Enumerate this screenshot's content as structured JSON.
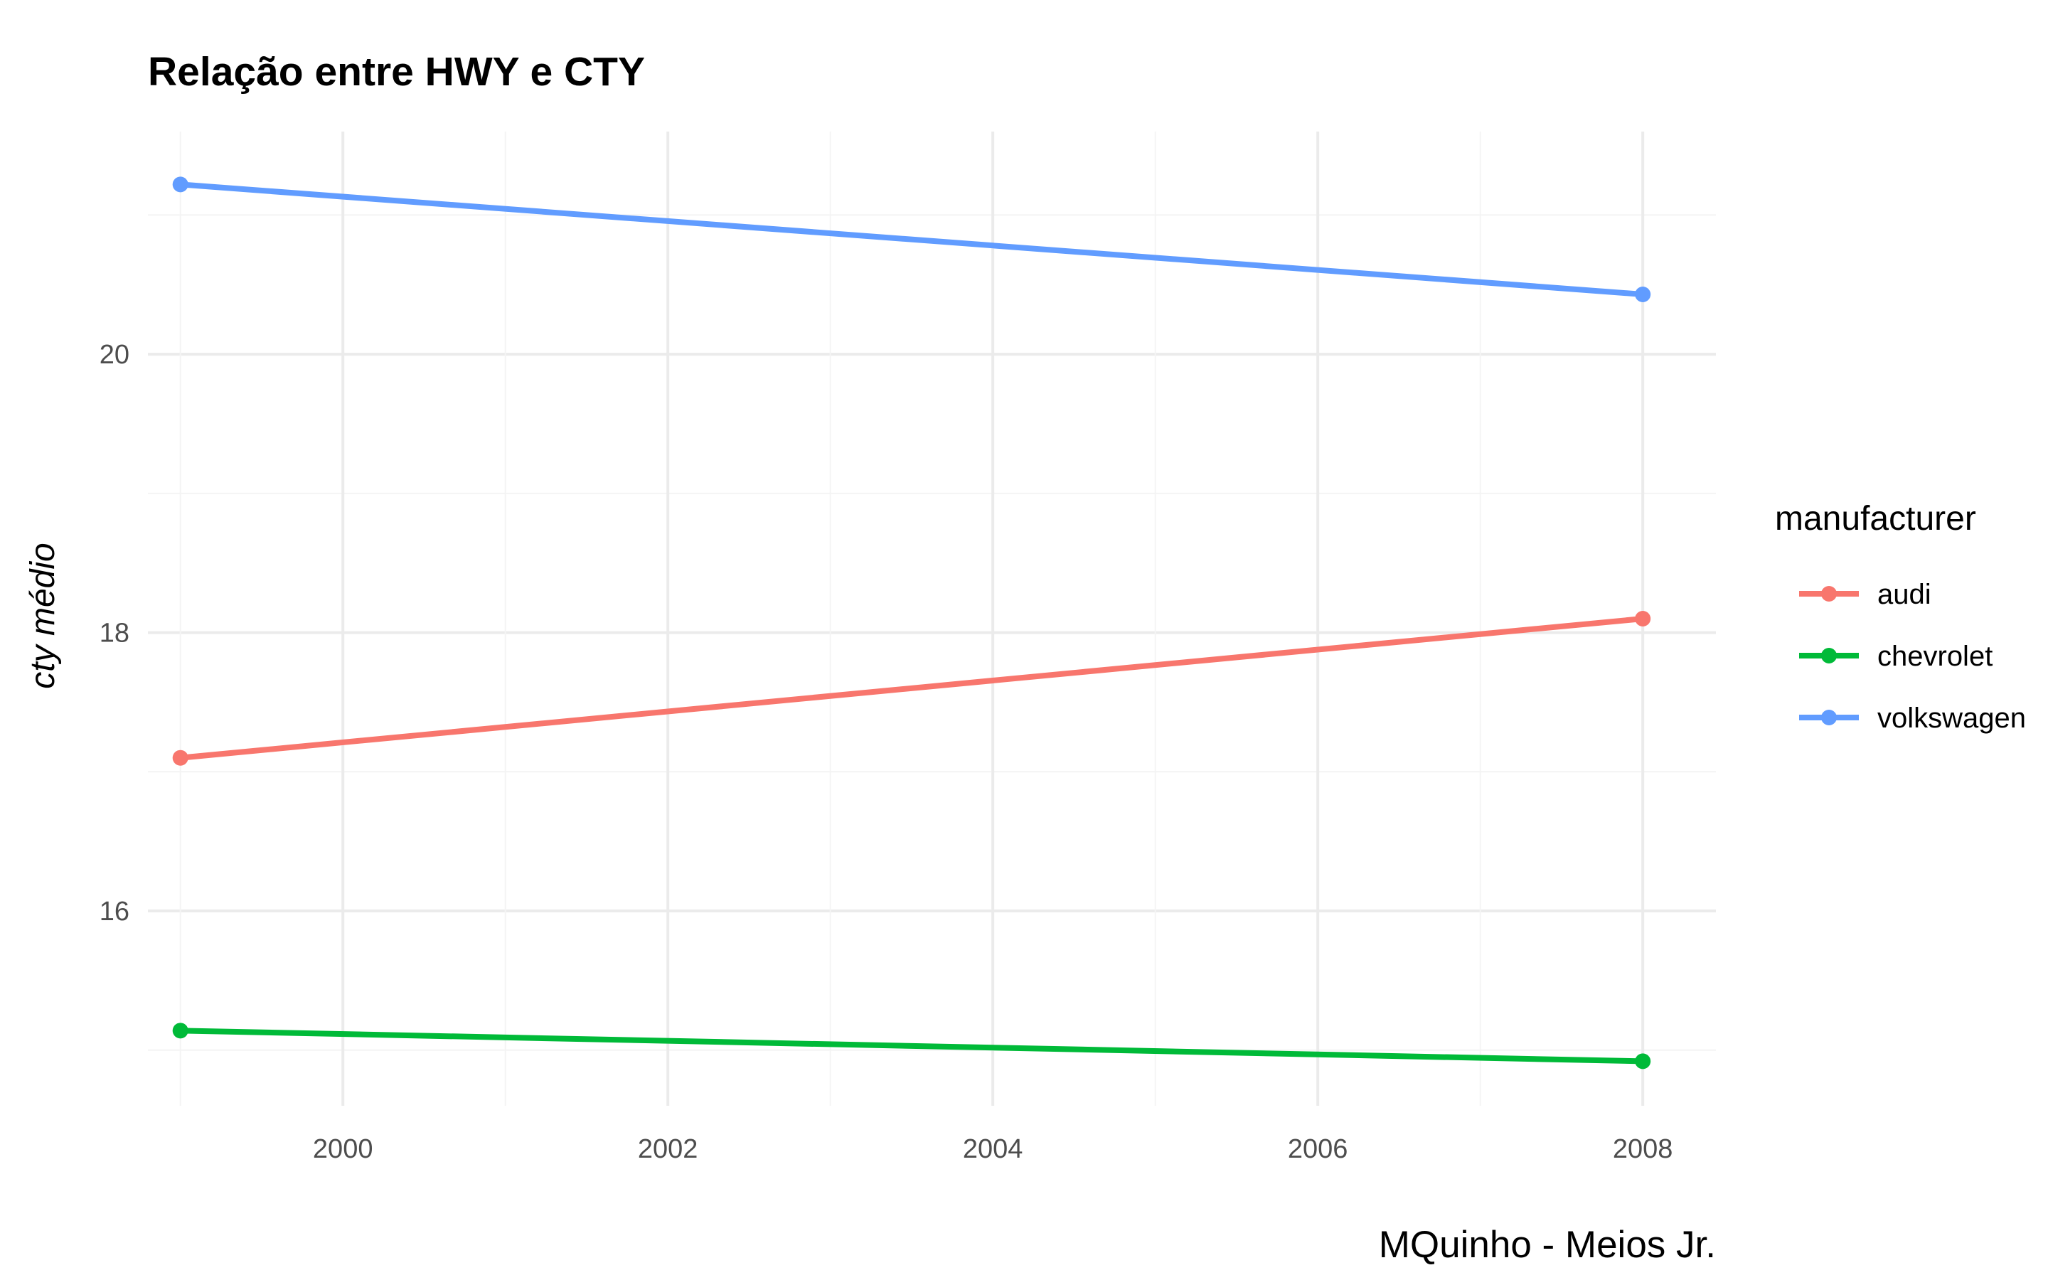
{
  "chart_data": {
    "type": "line",
    "title": "Relação entre HWY e CTY",
    "xlabel": "",
    "ylabel": "cty médio",
    "caption": "MQuinho - Meios Jr.",
    "x": [
      1999,
      2008
    ],
    "xlim": [
      1998.8,
      2008.45
    ],
    "ylim": [
      14.6,
      21.6
    ],
    "x_ticks": [
      2000,
      2002,
      2004,
      2006,
      2008
    ],
    "x_tick_labels": [
      "2000",
      "2002",
      "2004",
      "2006",
      "2008"
    ],
    "y_ticks": [
      16,
      18,
      20
    ],
    "y_tick_labels": [
      "16",
      "18",
      "20"
    ],
    "grid": true,
    "legend": {
      "title": "manufacturer",
      "position": "right"
    },
    "series": [
      {
        "name": "audi",
        "color": "#F8766D",
        "values": [
          17.1,
          18.1
        ]
      },
      {
        "name": "chevrolet",
        "color": "#00BA38",
        "values": [
          15.14,
          14.92
        ]
      },
      {
        "name": "volkswagen",
        "color": "#619CFF",
        "values": [
          21.22,
          20.43
        ]
      }
    ]
  }
}
